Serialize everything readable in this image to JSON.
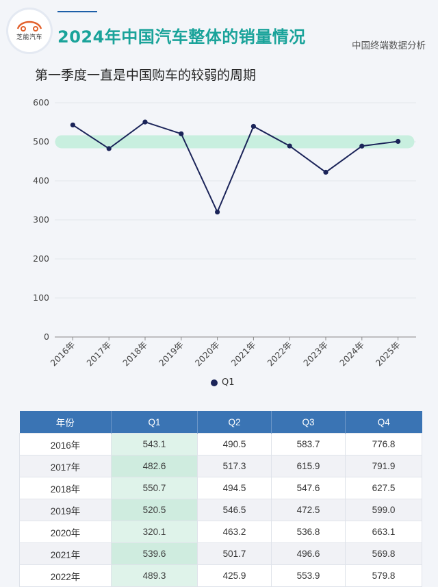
{
  "header": {
    "logo_text": "芝能汽车",
    "title": "2024年中国汽车整体的销量情况",
    "source": "中国终端数据分析",
    "subtitle": "第一季度一直是中国购车的较弱的周期"
  },
  "colors": {
    "title": "#1aa39a",
    "line": "#1b2459",
    "band": "#c8efdf",
    "table_header": "#3a74b4"
  },
  "chart_data": {
    "type": "line",
    "categories": [
      "2016年",
      "2017年",
      "2018年",
      "2019年",
      "2020年",
      "2021年",
      "2022年",
      "2023年",
      "2024年",
      "2025年"
    ],
    "series": [
      {
        "name": "Q1",
        "values": [
          543.1,
          482.6,
          550.7,
          520.5,
          320.1,
          539.6,
          489.3,
          422.0,
          489.0,
          501.0
        ]
      }
    ],
    "ylim": [
      0,
      600
    ],
    "yticks": [
      0,
      100,
      200,
      300,
      400,
      500,
      600
    ],
    "highlight_band_value": 500,
    "grid": true,
    "legend": "bottom"
  },
  "table": {
    "headers": [
      "年份",
      "Q1",
      "Q2",
      "Q3",
      "Q4"
    ],
    "rows": [
      [
        "2016年",
        "543.1",
        "490.5",
        "583.7",
        "776.8"
      ],
      [
        "2017年",
        "482.6",
        "517.3",
        "615.9",
        "791.9"
      ],
      [
        "2018年",
        "550.7",
        "494.5",
        "547.6",
        "627.5"
      ],
      [
        "2019年",
        "520.5",
        "546.5",
        "472.5",
        "599.0"
      ],
      [
        "2020年",
        "320.1",
        "463.2",
        "536.8",
        "663.1"
      ],
      [
        "2021年",
        "539.6",
        "501.7",
        "496.6",
        "569.8"
      ],
      [
        "2022年",
        "489.3",
        "425.9",
        "553.9",
        "579.8"
      ]
    ]
  }
}
